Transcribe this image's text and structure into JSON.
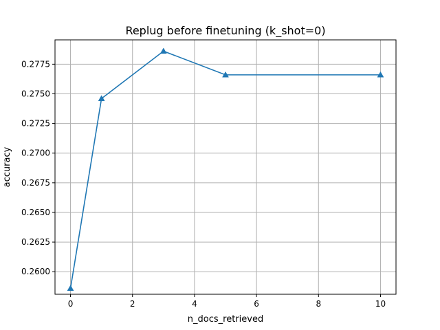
{
  "chart_data": {
    "type": "line",
    "title": "Replug before finetuning (k_shot=0)",
    "xlabel": "n_docs_retrieved",
    "ylabel": "accuracy",
    "xlim": [
      -0.5,
      10.5
    ],
    "ylim": [
      0.2581,
      0.27955
    ],
    "x_ticks": [
      0,
      2,
      4,
      6,
      8,
      10
    ],
    "x_tick_labels": [
      "0",
      "2",
      "4",
      "6",
      "8",
      "10"
    ],
    "y_ticks": [
      0.26,
      0.2625,
      0.265,
      0.2675,
      0.27,
      0.2725,
      0.275,
      0.2775
    ],
    "y_tick_labels": [
      "0.2600",
      "0.2625",
      "0.2650",
      "0.2675",
      "0.2700",
      "0.2725",
      "0.2750",
      "0.2775"
    ],
    "grid": true,
    "series": [
      {
        "color": "#1f77b4",
        "marker": "triangle-up",
        "x": [
          0,
          1,
          3,
          5,
          10
        ],
        "y": [
          0.2586,
          0.2746,
          0.2786,
          0.2766,
          0.2766
        ]
      }
    ]
  }
}
